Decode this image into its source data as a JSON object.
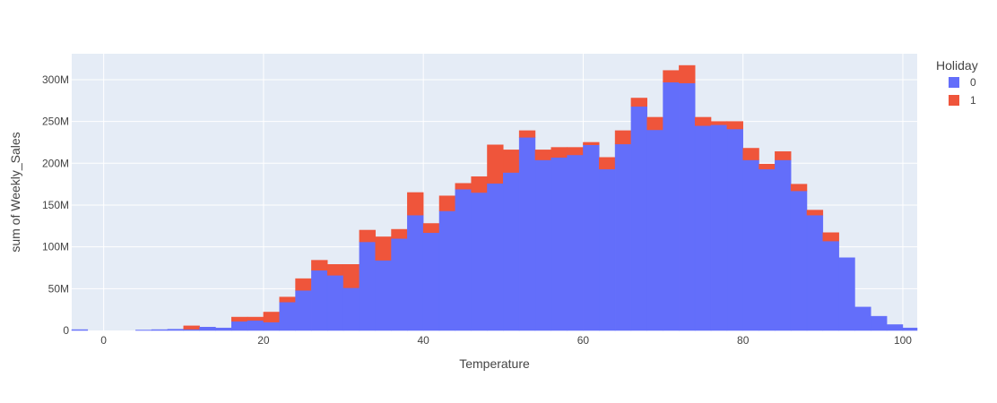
{
  "chart_data": {
    "type": "bar",
    "barmode": "stack",
    "xlabel": "Temperature",
    "ylabel": "sum of Weekly_Sales",
    "xlim": [
      -4,
      101.8
    ],
    "ylim": [
      0,
      331000000
    ],
    "x_ticks": [
      0,
      20,
      40,
      60,
      80,
      100
    ],
    "x_tick_labels": [
      "0",
      "20",
      "40",
      "60",
      "80",
      "100"
    ],
    "y_ticks": [
      0,
      50000000,
      100000000,
      150000000,
      200000000,
      250000000,
      300000000
    ],
    "y_tick_labels": [
      "0",
      "50M",
      "100M",
      "150M",
      "200M",
      "250M",
      "300M"
    ],
    "bin_start": -4,
    "bin_width": 2,
    "legend": {
      "title": "Holiday",
      "position": "top-right"
    },
    "grid": true,
    "colors": {
      "plot_bg": "#e5ecf6",
      "grid": "#ffffff",
      "series_0": "#636efa",
      "series_1": "#ef553b"
    },
    "series": [
      {
        "name": "0",
        "color": "#636efa",
        "values": [
          1000000,
          0,
          0,
          0,
          500000,
          1000000,
          1500000,
          1500000,
          4000000,
          3000000,
          11000000,
          12000000,
          10000000,
          34000000,
          48000000,
          72000000,
          66000000,
          51000000,
          106000000,
          84000000,
          110000000,
          138000000,
          117000000,
          143000000,
          169000000,
          165000000,
          176000000,
          189000000,
          231000000,
          204000000,
          207000000,
          210000000,
          222000000,
          193000000,
          223000000,
          268000000,
          240000000,
          297000000,
          296000000,
          245000000,
          246000000,
          241000000,
          204000000,
          193000000,
          204000000,
          167000000,
          138000000,
          107000000,
          87000000,
          28000000,
          17000000,
          7000000,
          3000000,
          1000000
        ]
      },
      {
        "name": "1",
        "color": "#ef553b",
        "values": [
          0,
          0,
          0,
          0,
          0,
          0,
          0,
          4000000,
          0,
          0,
          5000000,
          4000000,
          12000000,
          6000000,
          14000000,
          12000000,
          13000000,
          28000000,
          14000000,
          28000000,
          11000000,
          27000000,
          11000000,
          18000000,
          7000000,
          19000000,
          46000000,
          27000000,
          8000000,
          12000000,
          12000000,
          9000000,
          3000000,
          14000000,
          16000000,
          10000000,
          15000000,
          14000000,
          21000000,
          10000000,
          4000000,
          9000000,
          14000000,
          6000000,
          10000000,
          8000000,
          6000000,
          10000000,
          0,
          0,
          0,
          0,
          0,
          0
        ]
      }
    ]
  }
}
